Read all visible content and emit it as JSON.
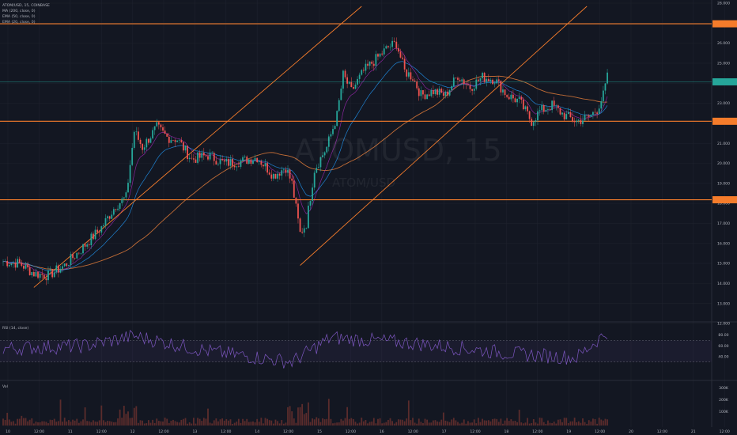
{
  "header": {
    "legend_lines": [
      "ATOM/USD, 15, COINBASE",
      "MA (200, close, 0)",
      "EMA (50, close, 0)",
      "EMA (20, close, 0)"
    ]
  },
  "watermark": {
    "big": "ATOMUSD, 15",
    "small": "ATOM/USD"
  },
  "rsi_panel": {
    "label": "RSI (14, close)",
    "ticks": [
      "80.00",
      "60.00",
      "40.00"
    ]
  },
  "volume_panel": {
    "label": "Vol",
    "ticks": [
      "300K",
      "200K",
      "100K"
    ]
  },
  "colors": {
    "background": "#131722",
    "up": "#26a69a",
    "down": "#ef5350",
    "hline": "#f57c2b",
    "channel": "#f57c2b",
    "ma200": "#e07b39",
    "ema50": "#2196f3",
    "ema20": "#9c27b0",
    "rsi": "#7e57c2",
    "volume": "#5b2c2c",
    "price_tag": "#26a69a"
  },
  "chart_data": {
    "type": "candlestick",
    "symbol": "ATOM/USD",
    "interval": "15",
    "exchange": "COINBASE",
    "ylim": [
      12.0,
      28.0
    ],
    "y_ticks": [
      "28.000",
      "27.000",
      "26.000",
      "25.000",
      "24.000",
      "23.000",
      "22.000",
      "21.000",
      "20.000",
      "19.000",
      "18.000",
      "17.000",
      "16.000",
      "15.000",
      "14.000",
      "13.000",
      "12.000"
    ],
    "x_ticks": [
      "10",
      "12:00",
      "11",
      "12:00",
      "12",
      "12:00",
      "13",
      "12:00",
      "14",
      "12:00",
      "15",
      "12:00",
      "16",
      "12:00",
      "17",
      "12:00",
      "18",
      "12:00",
      "19",
      "12:00",
      "20",
      "12:00",
      "21",
      "12:00"
    ],
    "horizontal_levels": [
      26.97,
      22.1,
      18.18
    ],
    "price_path": [
      [
        0,
        15.1
      ],
      [
        8,
        15.0
      ],
      [
        15,
        14.5
      ],
      [
        22,
        14.4
      ],
      [
        30,
        14.9
      ],
      [
        38,
        15.7
      ],
      [
        48,
        16.8
      ],
      [
        55,
        17.9
      ],
      [
        60,
        18.3
      ],
      [
        64,
        21.6
      ],
      [
        68,
        20.8
      ],
      [
        75,
        21.8
      ],
      [
        80,
        21.3
      ],
      [
        85,
        21.2
      ],
      [
        92,
        20.2
      ],
      [
        100,
        20.4
      ],
      [
        108,
        20.0
      ],
      [
        116,
        20.1
      ],
      [
        124,
        20.3
      ],
      [
        132,
        19.4
      ],
      [
        138,
        19.8
      ],
      [
        141,
        19.0
      ],
      [
        145,
        16.5
      ],
      [
        148,
        17.0
      ],
      [
        152,
        19.7
      ],
      [
        158,
        20.8
      ],
      [
        163,
        22.4
      ],
      [
        166,
        24.4
      ],
      [
        170,
        23.6
      ],
      [
        176,
        24.6
      ],
      [
        182,
        25.2
      ],
      [
        188,
        25.8
      ],
      [
        192,
        26.0
      ],
      [
        196,
        24.6
      ],
      [
        200,
        24.3
      ],
      [
        204,
        23.4
      ],
      [
        210,
        23.6
      ],
      [
        216,
        23.4
      ],
      [
        222,
        24.4
      ],
      [
        228,
        23.8
      ],
      [
        234,
        24.3
      ],
      [
        240,
        24.2
      ],
      [
        246,
        23.4
      ],
      [
        252,
        23.1
      ],
      [
        258,
        22.1
      ],
      [
        262,
        22.6
      ],
      [
        268,
        22.9
      ],
      [
        274,
        22.4
      ],
      [
        280,
        22.1
      ],
      [
        286,
        22.3
      ],
      [
        290,
        22.7
      ],
      [
        293,
        23.4
      ],
      [
        295,
        24.3
      ]
    ],
    "rsi_path": [
      [
        0,
        55
      ],
      [
        40,
        60
      ],
      [
        64,
        78
      ],
      [
        100,
        50
      ],
      [
        141,
        30
      ],
      [
        160,
        75
      ],
      [
        200,
        65
      ],
      [
        250,
        45
      ],
      [
        280,
        38
      ],
      [
        295,
        86
      ]
    ],
    "last_price": 24.07
  }
}
